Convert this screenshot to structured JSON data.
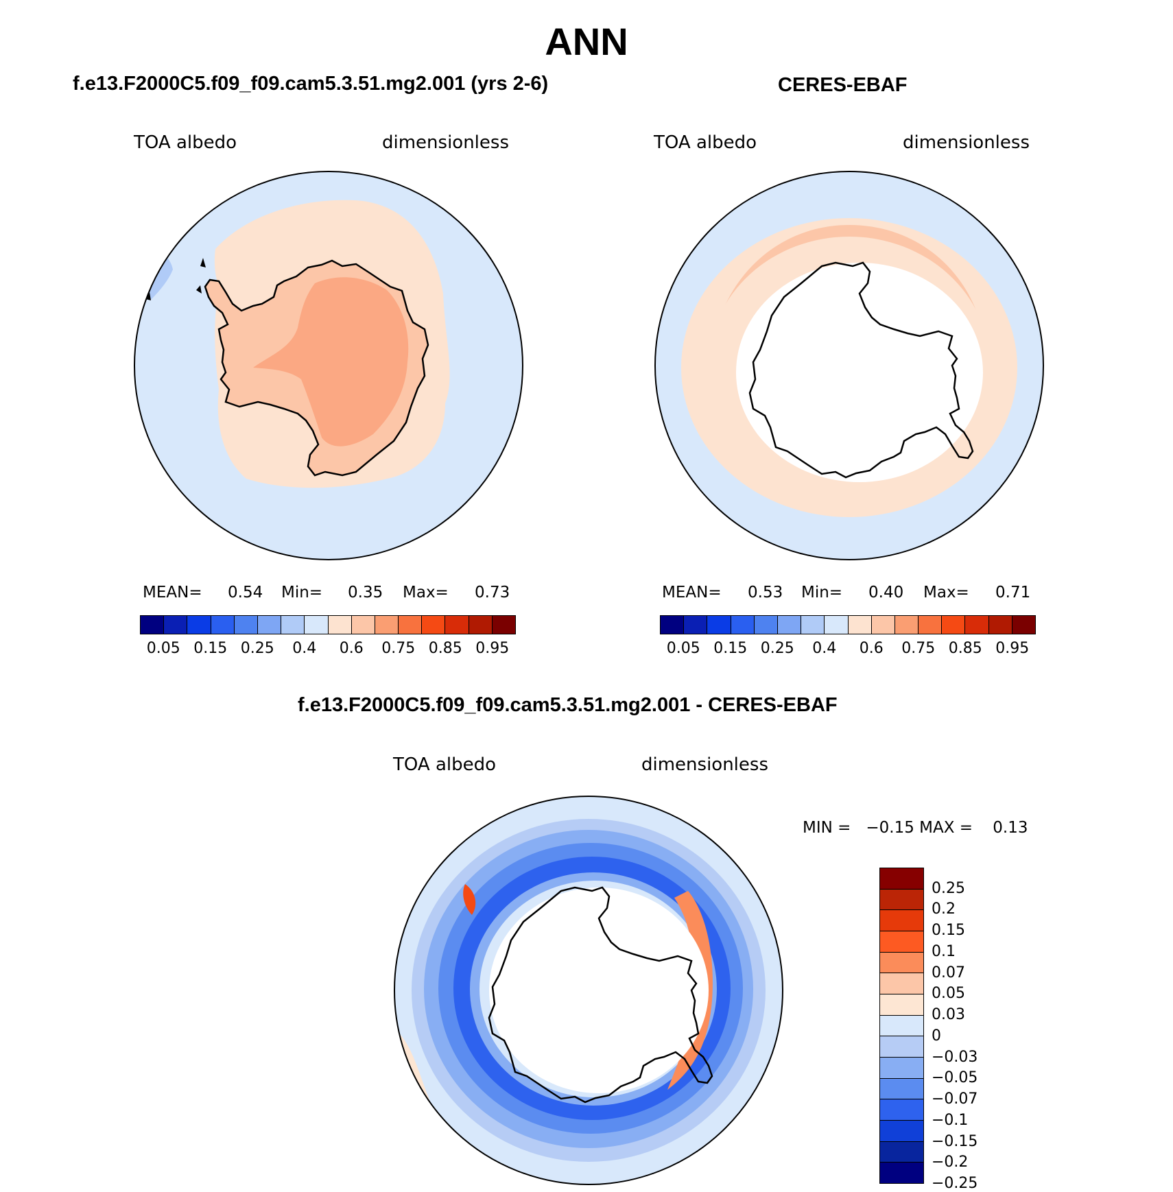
{
  "title": "ANN",
  "panels": {
    "model": {
      "title": "f.e13.F2000C5.f09_f09.cam5.3.51.mg2.001 (yrs 2-6)",
      "left_label": "TOA albedo",
      "right_label": "dimensionless",
      "mean_label": "MEAN=",
      "mean_value": "0.54",
      "min_label": "Min=",
      "min_value": "0.35",
      "max_label": "Max=",
      "max_value": "0.73"
    },
    "obs": {
      "title": "CERES-EBAF",
      "left_label": "TOA albedo",
      "right_label": "dimensionless",
      "mean_label": "MEAN=",
      "mean_value": "0.53",
      "min_label": "Min=",
      "min_value": "0.40",
      "max_label": "Max=",
      "max_value": "0.71"
    },
    "diff": {
      "title": "f.e13.F2000C5.f09_f09.cam5.3.51.mg2.001 - CERES-EBAF",
      "left_label": "TOA albedo",
      "right_label": "dimensionless",
      "minmax_text": "MIN =   −0.15 MAX =    0.13"
    }
  },
  "abs_colorbar": {
    "colors": [
      "#000080",
      "#0a1fb4",
      "#0a3ce6",
      "#2a5ff0",
      "#4e82f0",
      "#7ea6f4",
      "#b0cbf7",
      "#d8e8fb",
      "#fde3d0",
      "#fcc6a8",
      "#fa9e72",
      "#f8723e",
      "#f54a14",
      "#d82c08",
      "#b01a02",
      "#7a0000"
    ],
    "ticks": [
      "0.05",
      "0.15",
      "0.25",
      "0.4",
      "0.6",
      "0.75",
      "0.85",
      "0.95"
    ]
  },
  "diff_colorbar": {
    "colors": [
      "#860000",
      "#bb2506",
      "#e63a0a",
      "#fd5a22",
      "#fb8c5a",
      "#fcc6a8",
      "#fde6d3",
      "#d8e8fb",
      "#b6ccf5",
      "#88aef3",
      "#5b8cf0",
      "#2e62ee",
      "#1040d8",
      "#08259e",
      "#000080"
    ],
    "ticks": [
      "0.25",
      "0.2",
      "0.15",
      "0.1",
      "0.07",
      "0.05",
      "0.03",
      "0",
      "−0.03",
      "−0.05",
      "−0.07",
      "−0.1",
      "−0.15",
      "−0.2",
      "−0.25"
    ]
  }
}
